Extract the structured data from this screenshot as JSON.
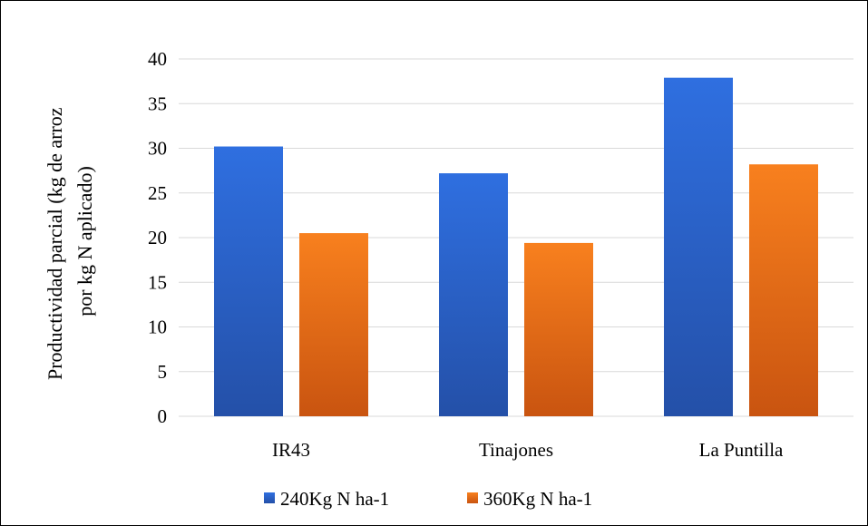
{
  "chart_data": {
    "type": "bar",
    "categories": [
      "IR43",
      "Tinajones",
      "La Puntilla"
    ],
    "series": [
      {
        "name": "240Kg N ha-1",
        "values": [
          30.2,
          27.2,
          37.9
        ],
        "color": "#2f6ad6"
      },
      {
        "name": "360Kg N ha-1",
        "values": [
          20.5,
          19.4,
          28.2
        ],
        "color": "#f07820"
      }
    ],
    "title": "",
    "xlabel": "",
    "ylabel_lines": [
      "Productividad parcial (kg de arroz",
      "por kg N aplicado)"
    ],
    "ylim": [
      0,
      40
    ],
    "yticks": [
      0,
      5,
      10,
      15,
      20,
      25,
      30,
      35,
      40
    ],
    "grid": true,
    "legend_position": "bottom"
  }
}
